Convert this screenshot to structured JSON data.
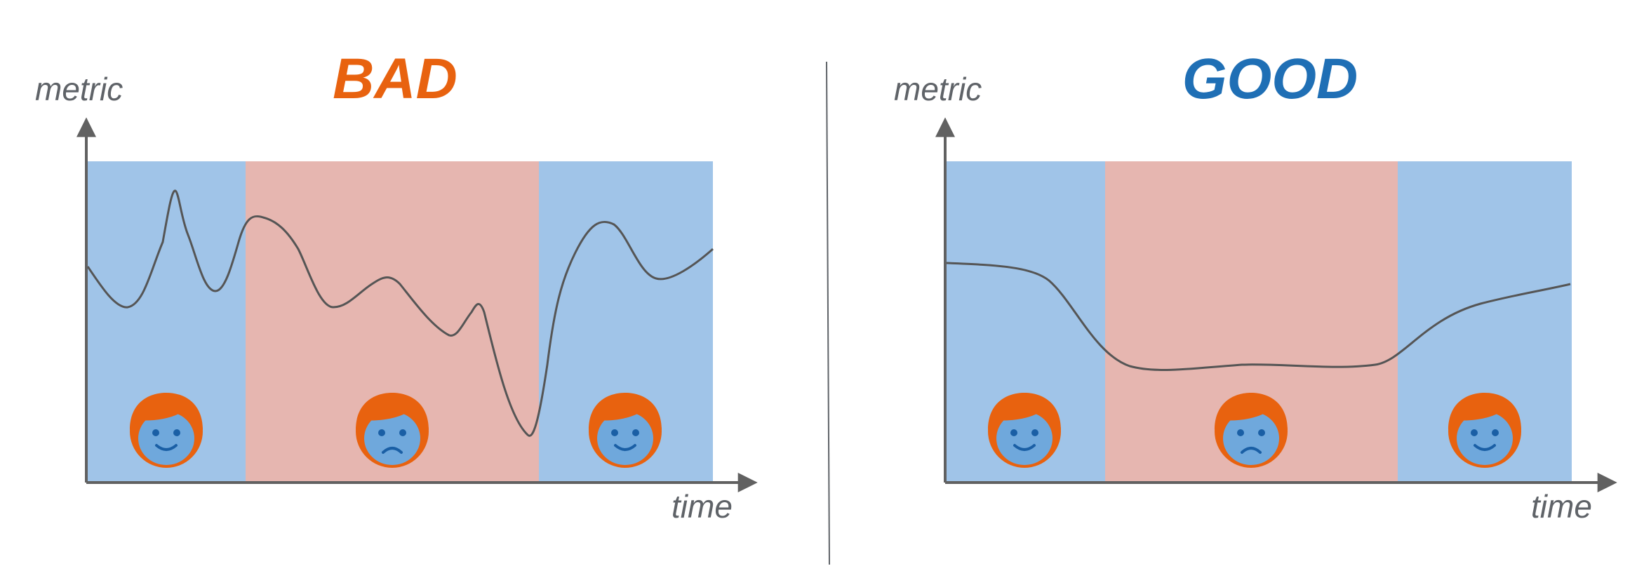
{
  "colors": {
    "good_band": "#a0c4e8",
    "bad_band": "#e6b6b0",
    "axis": "#616161",
    "line": "#555555",
    "divider": "#5f6368",
    "face_fill": "#e8620f",
    "face_skin": "#6fa8dc",
    "face_features": "#1a5fa5",
    "bad_title": "#e8620f",
    "good_title": "#1f6fb5"
  },
  "panels": [
    {
      "title": "BAD",
      "y_label": "metric",
      "x_label": "time",
      "bands": [
        "happy",
        "sad",
        "happy"
      ],
      "metric_curve": "volatile"
    },
    {
      "title": "GOOD",
      "y_label": "metric",
      "x_label": "time",
      "bands": [
        "happy",
        "sad",
        "happy"
      ],
      "metric_curve": "smooth"
    }
  ]
}
